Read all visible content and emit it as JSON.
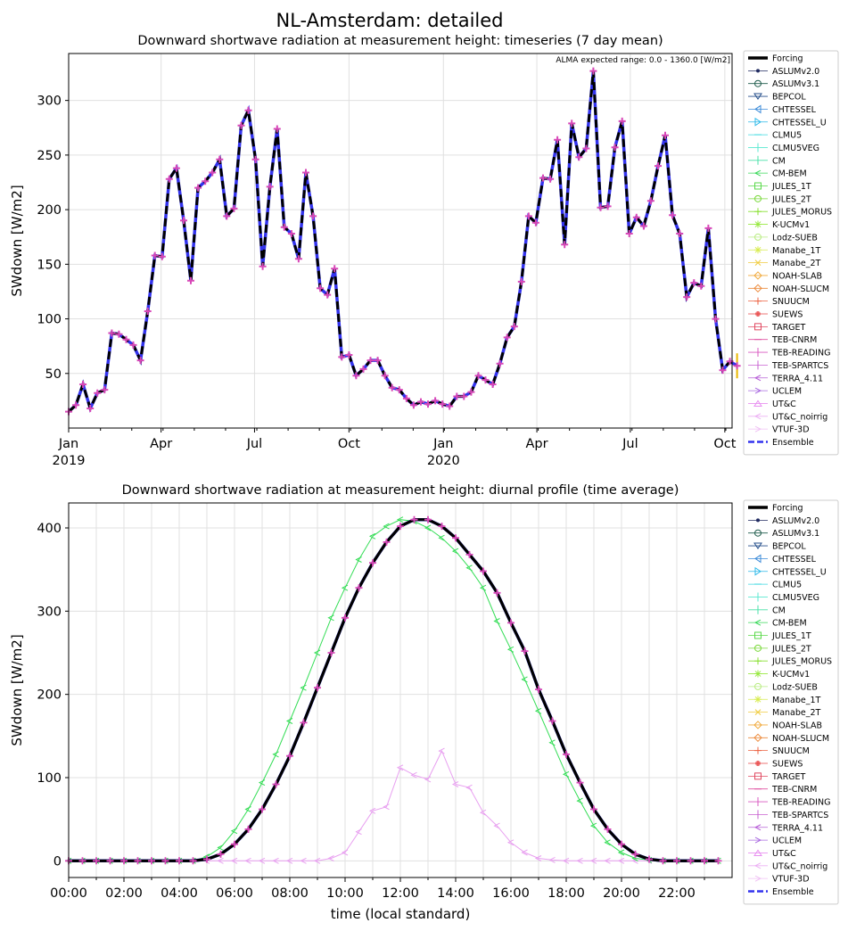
{
  "figure": {
    "suptitle": "NL-Amsterdam: detailed"
  },
  "models": [
    "Forcing",
    "ASLUMv2.0",
    "ASLUMv3.1",
    "BEPCOL",
    "CHTESSEL",
    "CHTESSEL_U",
    "CLMU5",
    "CLMU5VEG",
    "CM",
    "CM-BEM",
    "JULES_1T",
    "JULES_2T",
    "JULES_MORUS",
    "K-UCMv1",
    "Lodz-SUEB",
    "Manabe_1T",
    "Manabe_2T",
    "NOAH-SLAB",
    "NOAH-SLUCM",
    "SNUUCM",
    "SUEWS",
    "TARGET",
    "TEB-CNRM",
    "TEB-READING",
    "TEB-SPARTCS",
    "TERRA_4.11",
    "UCLEM",
    "UT&C",
    "UT&C_noirrig",
    "VTUF-3D",
    "Ensemble"
  ],
  "colors": {
    "forcing": "#000000",
    "ensemble": "#3333ee",
    "cm_bem": "#33dd55",
    "ut_c": "#e8a0f0",
    "markers": "#d848b8"
  },
  "chart_data": [
    {
      "type": "line",
      "title": "Downward shortwave radiation at measurement height: timeseries (7 day mean)",
      "annotation": "ALMA expected range: 0.0 - 1360.0 [W/m2]",
      "ylabel": "SWdown [W/m2]",
      "xlabel": "",
      "ylim": [
        0,
        343
      ],
      "yticks": [
        "50",
        "100",
        "150",
        "200",
        "250",
        "300"
      ],
      "xticks": [
        {
          "label": "Jan",
          "sublabel": "2019",
          "week": 0
        },
        {
          "label": "Apr",
          "sublabel": "",
          "week": 12.86
        },
        {
          "label": "Jul",
          "sublabel": "",
          "week": 25.86
        },
        {
          "label": "Oct",
          "sublabel": "",
          "week": 39
        },
        {
          "label": "Jan",
          "sublabel": "2020",
          "week": 52.14
        },
        {
          "label": "Apr",
          "sublabel": "",
          "week": 65.14
        },
        {
          "label": "Jul",
          "sublabel": "",
          "week": 78.14
        },
        {
          "label": "Oct",
          "sublabel": "",
          "week": 91.29
        }
      ],
      "x_range_weeks": [
        0,
        92.3
      ],
      "grid": true,
      "legend_position": "right",
      "series": [
        {
          "name": "Forcing",
          "values": [
            15,
            21,
            40,
            18,
            32,
            35,
            87,
            86,
            81,
            76,
            62,
            107,
            158,
            157,
            228,
            238,
            190,
            135,
            220,
            226,
            234,
            246,
            194,
            201,
            277,
            291,
            246,
            148,
            221,
            274,
            184,
            178,
            155,
            234,
            194,
            128,
            122,
            146,
            65,
            67,
            48,
            54,
            62,
            62,
            48,
            37,
            35,
            27,
            21,
            24,
            22,
            25,
            22,
            20,
            29,
            29,
            33,
            48,
            44,
            40,
            59,
            83,
            93,
            134,
            194,
            188,
            229,
            228,
            264,
            168,
            279,
            248,
            256,
            327,
            202,
            203,
            257,
            281,
            178,
            193,
            185,
            208,
            240,
            268,
            195,
            178,
            120,
            133,
            130,
            183,
            100,
            53,
            61,
            57
          ]
        }
      ]
    },
    {
      "type": "line",
      "title": "Downward shortwave radiation at measurement height: diurnal profile (time average)",
      "xlabel": "time (local standard)",
      "ylabel": "SWdown [W/m2]",
      "ylim": [
        -20,
        430
      ],
      "yticks": [
        "0",
        "100",
        "200",
        "300",
        "400"
      ],
      "xticks": [
        "00:00",
        "02:00",
        "04:00",
        "06:00",
        "08:00",
        "10:00",
        "12:00",
        "14:00",
        "16:00",
        "18:00",
        "20:00",
        "22:00"
      ],
      "x_range_hours": [
        0,
        24
      ],
      "grid": true,
      "legend_position": "right",
      "x_hours": [
        0,
        0.5,
        1,
        1.5,
        2,
        2.5,
        3,
        3.5,
        4,
        4.5,
        5,
        5.5,
        6,
        6.5,
        7,
        7.5,
        8,
        8.5,
        9,
        9.5,
        10,
        10.5,
        11,
        11.5,
        12,
        12.5,
        13,
        13.5,
        14,
        14.5,
        15,
        15.5,
        16,
        16.5,
        17,
        17.5,
        18,
        18.5,
        19,
        19.5,
        20,
        20.5,
        21,
        21.5,
        22,
        22.5,
        23,
        23.5
      ],
      "series": [
        {
          "name": "Forcing",
          "values": [
            0,
            0,
            0,
            0,
            0,
            0,
            0,
            0,
            0,
            0,
            2,
            8,
            20,
            38,
            62,
            92,
            126,
            166,
            208,
            250,
            292,
            328,
            358,
            383,
            402,
            410,
            410,
            402,
            388,
            368,
            348,
            322,
            286,
            252,
            206,
            168,
            128,
            94,
            62,
            38,
            20,
            8,
            2,
            0,
            0,
            0,
            0,
            0
          ]
        },
        {
          "name": "CM-BEM",
          "values": [
            0,
            0,
            0,
            0,
            0,
            0,
            0,
            0,
            0,
            0,
            5,
            16,
            36,
            62,
            94,
            128,
            168,
            208,
            250,
            292,
            328,
            362,
            390,
            402,
            410,
            408,
            400,
            388,
            372,
            352,
            328,
            288,
            254,
            218,
            180,
            142,
            104,
            72,
            42,
            22,
            10,
            3,
            1,
            0,
            0,
            0,
            0,
            0
          ]
        },
        {
          "name": "UT&C",
          "values": [
            0,
            0,
            0,
            0,
            0,
            0,
            0,
            0,
            0,
            0,
            0,
            0,
            0,
            0,
            0,
            0,
            0,
            0,
            0,
            3,
            10,
            35,
            60,
            65,
            112,
            103,
            98,
            132,
            92,
            88,
            58,
            42,
            22,
            10,
            3,
            1,
            0,
            0,
            0,
            0,
            0,
            0,
            0,
            0,
            0,
            0,
            0,
            0
          ]
        }
      ]
    }
  ]
}
